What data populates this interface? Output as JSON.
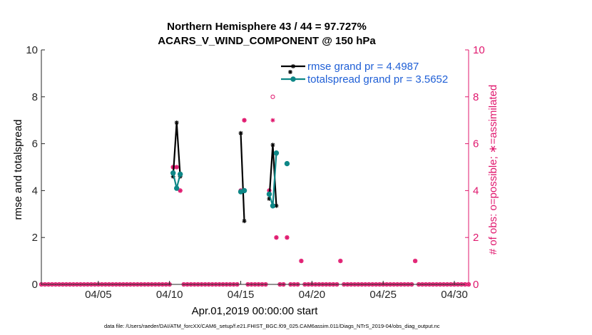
{
  "chart_data": {
    "type": "line",
    "title": "Northern Hemisphere 43 / 44 = 97.727%",
    "subtitle": "ACARS_V_WIND_COMPONENT @ 150 hPa",
    "xlabel": "Apr.01,2019 00:00:00 start",
    "ylabel_left": "rmse and totalspread",
    "ylabel_right": "# of obs: o=possible; ∗=assimilated",
    "footnote": "data file: /Users/raeder/DAI/ATM_forcXX/CAM6_setup/f.e21.FHIST_BGC.f09_025.CAM6assim.011/Diags_NTrS_2019-04/obs_diag_output.nc",
    "x_ticks": [
      {
        "day": 5,
        "label": "04/05"
      },
      {
        "day": 10,
        "label": "04/10"
      },
      {
        "day": 15,
        "label": "04/15"
      },
      {
        "day": 20,
        "label": "04/20"
      },
      {
        "day": 25,
        "label": "04/25"
      },
      {
        "day": 30,
        "label": "04/30"
      }
    ],
    "xlim_days": [
      1,
      31
    ],
    "ylim": [
      0,
      10
    ],
    "y_ticks": [
      0,
      2,
      4,
      6,
      8,
      10
    ],
    "y_ticks_right": [
      0,
      2,
      4,
      6,
      8,
      10
    ],
    "grid": false,
    "legend_position": "top-right",
    "legend": [
      {
        "label": "rmse grand pr = 4.4987",
        "color": "#000000"
      },
      {
        "label": "totalspread grand pr = 3.5652",
        "color": "#0e8787"
      }
    ],
    "series": [
      {
        "name": "rmse grand pr = 4.4987",
        "color": "#000000",
        "segments": [
          [
            [
              10.25,
              4.6
            ],
            [
              10.5,
              6.9
            ],
            [
              10.75,
              4.6
            ]
          ],
          [
            [
              15.0,
              6.45
            ],
            [
              15.25,
              2.7
            ]
          ],
          [
            [
              17.0,
              3.65
            ],
            [
              17.25,
              5.95
            ],
            [
              17.5,
              3.35
            ]
          ]
        ]
      },
      {
        "name": "totalspread grand pr = 3.5652",
        "color": "#0e8787",
        "segments": [
          [
            [
              10.25,
              4.75
            ],
            [
              10.5,
              4.1
            ],
            [
              10.75,
              4.7
            ]
          ],
          [
            [
              15.0,
              3.95
            ],
            [
              15.25,
              4.0
            ]
          ],
          [
            [
              17.0,
              3.85
            ],
            [
              17.25,
              3.35
            ],
            [
              17.5,
              5.6
            ]
          ],
          [
            [
              18.25,
              5.15
            ]
          ]
        ]
      }
    ],
    "obs_counts": {
      "color": "#e0186e",
      "possible": [
        {
          "x": 10.25,
          "y": 5
        },
        {
          "x": 10.5,
          "y": 5
        },
        {
          "x": 10.75,
          "y": 4
        },
        {
          "x": 15.0,
          "y": 4
        },
        {
          "x": 15.25,
          "y": 7
        },
        {
          "x": 17.0,
          "y": 4
        },
        {
          "x": 17.25,
          "y": 8
        },
        {
          "x": 17.5,
          "y": 2
        },
        {
          "x": 18.25,
          "y": 2
        },
        {
          "x": 19.25,
          "y": 1
        },
        {
          "x": 22.0,
          "y": 1
        },
        {
          "x": 27.25,
          "y": 1
        }
      ],
      "assimilated": [
        {
          "x": 10.25,
          "y": 5
        },
        {
          "x": 10.5,
          "y": 5
        },
        {
          "x": 10.75,
          "y": 4
        },
        {
          "x": 15.0,
          "y": 4
        },
        {
          "x": 15.25,
          "y": 7
        },
        {
          "x": 17.0,
          "y": 4
        },
        {
          "x": 17.25,
          "y": 7
        },
        {
          "x": 17.5,
          "y": 2
        },
        {
          "x": 18.25,
          "y": 2
        },
        {
          "x": 19.25,
          "y": 1
        },
        {
          "x": 22.0,
          "y": 1
        },
        {
          "x": 27.25,
          "y": 1
        }
      ],
      "zero_from": 1.0,
      "zero_to": 31.0,
      "zero_step": 0.25
    }
  }
}
